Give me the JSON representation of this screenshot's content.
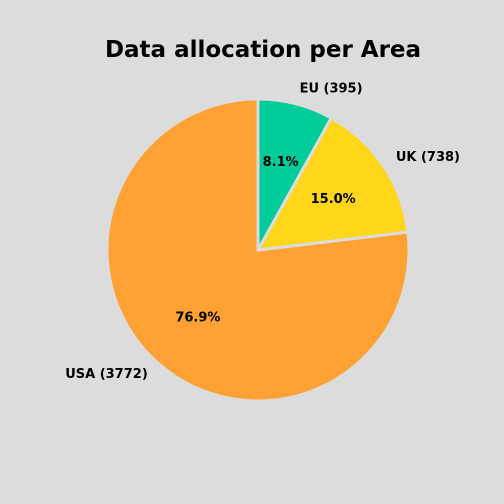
{
  "chart_data": {
    "type": "pie",
    "title": "Data allocation per Area",
    "slices": [
      {
        "label": "USA (3772)",
        "category": "USA",
        "value": 3772,
        "percent_label": "76.9%",
        "color": "#ffa233"
      },
      {
        "label": "UK (738)",
        "category": "UK",
        "value": 738,
        "percent_label": "15.0%",
        "color": "#ffd619"
      },
      {
        "label": "EU (395)",
        "category": "EU",
        "value": 395,
        "percent_label": "8.1%",
        "color": "#00cc99"
      }
    ],
    "start_angle_deg": 90,
    "direction": "counterclockwise",
    "edge_color": "#dcdcdc",
    "background": "#dcdcdc"
  }
}
